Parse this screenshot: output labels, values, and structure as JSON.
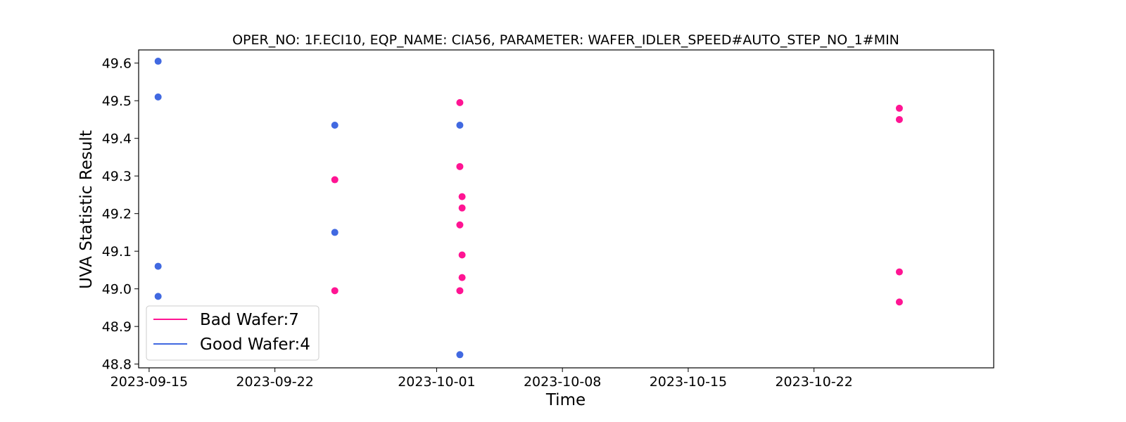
{
  "chart_data": {
    "type": "scatter",
    "title": "OPER_NO: 1F.ECI10,  EQP_NAME: CIA56,  PARAMETER: WAFER_IDLER_SPEED#AUTO_STEP_NO_1#MIN",
    "xlabel": "Time",
    "ylabel": "UVA Statistic Result",
    "x_type": "date",
    "xlim": [
      "2023-09-14T10:00",
      "2023-11-01T00:00"
    ],
    "ylim": [
      48.79,
      49.635
    ],
    "x_ticks": [
      "2023-09-15",
      "2023-09-22",
      "2023-10-01",
      "2023-10-08",
      "2023-10-15",
      "2023-10-22"
    ],
    "y_ticks": [
      48.8,
      48.9,
      49.0,
      49.1,
      49.2,
      49.3,
      49.4,
      49.5,
      49.6
    ],
    "grid": false,
    "legend_position": "lower-left",
    "legend": [
      {
        "label": "Bad Wafer:7",
        "color": "#ff1493"
      },
      {
        "label": "Good Wafer:4",
        "color": "#4169e1"
      }
    ],
    "series": [
      {
        "name": "Bad Wafer:7",
        "color": "#ff1493",
        "points": [
          {
            "x": "2023-09-25T08:00",
            "y": 49.29
          },
          {
            "x": "2023-09-25T08:00",
            "y": 48.995
          },
          {
            "x": "2023-10-02T07:00",
            "y": 49.495
          },
          {
            "x": "2023-10-02T07:00",
            "y": 49.325
          },
          {
            "x": "2023-10-02T10:00",
            "y": 49.245
          },
          {
            "x": "2023-10-02T10:00",
            "y": 49.215
          },
          {
            "x": "2023-10-02T07:00",
            "y": 49.17
          },
          {
            "x": "2023-10-02T10:00",
            "y": 49.09
          },
          {
            "x": "2023-10-02T10:00",
            "y": 49.03
          },
          {
            "x": "2023-10-02T07:00",
            "y": 48.995
          },
          {
            "x": "2023-10-26T18:00",
            "y": 49.48
          },
          {
            "x": "2023-10-26T18:00",
            "y": 49.45
          },
          {
            "x": "2023-10-26T18:00",
            "y": 49.045
          },
          {
            "x": "2023-10-26T18:00",
            "y": 48.965
          }
        ]
      },
      {
        "name": "Good Wafer:4",
        "color": "#4169e1",
        "points": [
          {
            "x": "2023-09-15T12:00",
            "y": 49.605
          },
          {
            "x": "2023-09-15T12:00",
            "y": 49.51
          },
          {
            "x": "2023-09-15T12:00",
            "y": 49.06
          },
          {
            "x": "2023-09-15T12:00",
            "y": 48.98
          },
          {
            "x": "2023-09-25T08:00",
            "y": 49.435
          },
          {
            "x": "2023-09-25T08:00",
            "y": 49.15
          },
          {
            "x": "2023-10-02T07:00",
            "y": 49.435
          },
          {
            "x": "2023-10-02T07:00",
            "y": 48.825
          }
        ]
      }
    ]
  }
}
